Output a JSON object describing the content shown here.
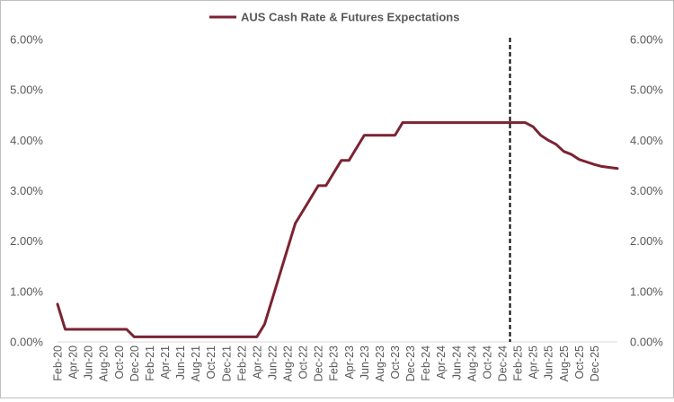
{
  "chart_data": {
    "type": "line",
    "title": "",
    "series": [
      {
        "name": "AUS Cash Rate & Futures Expectations",
        "color": "#7b2333",
        "values": [
          0.75,
          0.25,
          0.25,
          0.25,
          0.25,
          0.25,
          0.25,
          0.25,
          0.25,
          0.25,
          0.1,
          0.1,
          0.1,
          0.1,
          0.1,
          0.1,
          0.1,
          0.1,
          0.1,
          0.1,
          0.1,
          0.1,
          0.1,
          0.1,
          0.1,
          0.1,
          0.1,
          0.35,
          0.85,
          1.35,
          1.85,
          2.35,
          2.6,
          2.85,
          3.1,
          3.1,
          3.35,
          3.6,
          3.6,
          3.85,
          4.1,
          4.1,
          4.1,
          4.1,
          4.1,
          4.35,
          4.35,
          4.35,
          4.35,
          4.35,
          4.35,
          4.35,
          4.35,
          4.35,
          4.35,
          4.35,
          4.35,
          4.35,
          4.35,
          4.35,
          4.35,
          4.35,
          4.27,
          4.1,
          4.0,
          3.92,
          3.78,
          3.72,
          3.62,
          3.57,
          3.52,
          3.48,
          3.46,
          3.44
        ]
      }
    ],
    "x_start_index_label": "Feb-20",
    "x_tick_labels": [
      "Feb-20",
      "Apr-20",
      "Jun-20",
      "Aug-20",
      "Oct-20",
      "Dec-20",
      "Feb-21",
      "Apr-21",
      "Jun-21",
      "Aug-21",
      "Oct-21",
      "Dec-21",
      "Feb-22",
      "Apr-22",
      "Jun-22",
      "Aug-22",
      "Oct-22",
      "Dec-22",
      "Feb-23",
      "Apr-23",
      "Jun-23",
      "Aug-23",
      "Oct-23",
      "Dec-23",
      "Feb-24",
      "Apr-24",
      "Jun-24",
      "Aug-24",
      "Oct-24",
      "Dec-24",
      "Feb-25",
      "Apr-25",
      "Jun-25",
      "Aug-25",
      "Oct-25",
      "Dec-25"
    ],
    "y_tick_labels": [
      "0.00%",
      "1.00%",
      "2.00%",
      "3.00%",
      "4.00%",
      "5.00%",
      "6.00%"
    ],
    "ylim": [
      0,
      6
    ],
    "secondary_y_axis": true,
    "grid": false,
    "legend_position": "top",
    "vertical_marker": {
      "at_label": "Jan-25",
      "style": "dashed",
      "color": "#000000"
    }
  }
}
